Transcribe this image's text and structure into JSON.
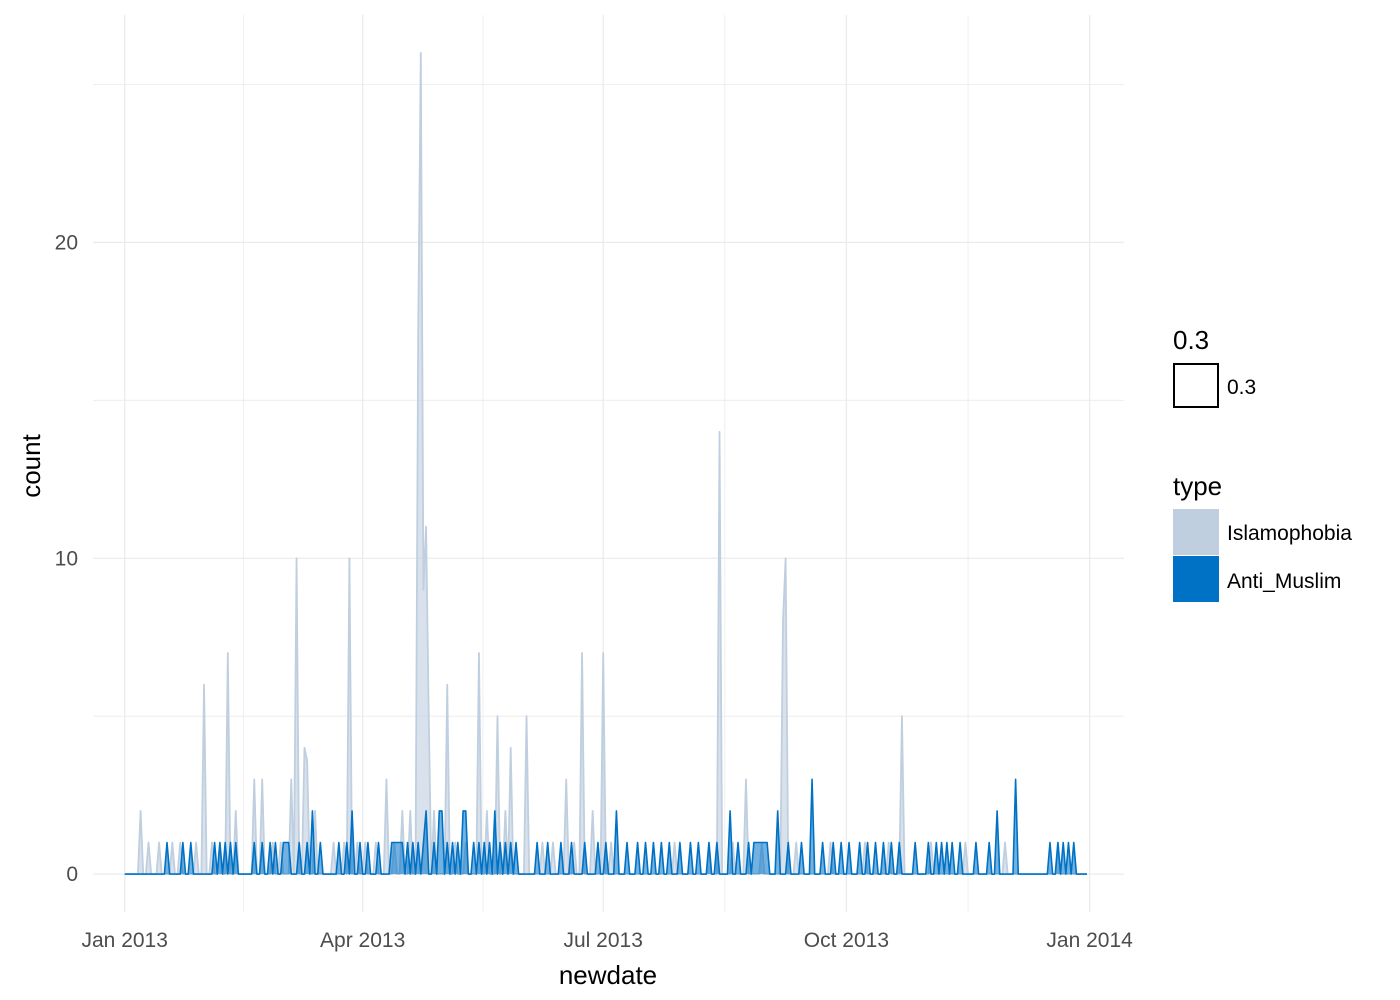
{
  "chart_data": {
    "type": "area",
    "xlabel": "newdate",
    "ylabel": "count",
    "x_ticks": [
      "Jan 2013",
      "Apr 2013",
      "Jul 2013",
      "Oct 2013",
      "Jan 2014"
    ],
    "x_tick_dates": [
      "2013-01-01",
      "2013-04-01",
      "2013-07-01",
      "2013-10-01",
      "2014-01-01"
    ],
    "xlim": [
      "2012-12-20",
      "2014-01-14"
    ],
    "y_ticks": [
      0,
      10,
      20
    ],
    "ylim": [
      -1.2,
      27.2
    ],
    "grid": true,
    "legend_position": "right",
    "alpha_legend": {
      "title": "0.3",
      "label": "0.3"
    },
    "legend": {
      "title": "type"
    },
    "series": [
      {
        "name": "Islamophobia",
        "color": "#bfcfdf",
        "points": [
          [
            "2013-01-07",
            2
          ],
          [
            "2013-01-10",
            1
          ],
          [
            "2013-01-14",
            1
          ],
          [
            "2013-01-19",
            1
          ],
          [
            "2013-01-22",
            1
          ],
          [
            "2013-01-28",
            1
          ],
          [
            "2013-01-31",
            6
          ],
          [
            "2013-02-03",
            1
          ],
          [
            "2013-02-06",
            1
          ],
          [
            "2013-02-09",
            7
          ],
          [
            "2013-02-12",
            2
          ],
          [
            "2013-02-19",
            3
          ],
          [
            "2013-02-22",
            3
          ],
          [
            "2013-02-26",
            1
          ],
          [
            "2013-03-01",
            1
          ],
          [
            "2013-03-05",
            3
          ],
          [
            "2013-03-07",
            10
          ],
          [
            "2013-03-10",
            4
          ],
          [
            "2013-03-11",
            3.6
          ],
          [
            "2013-03-14",
            2
          ],
          [
            "2013-03-21",
            1
          ],
          [
            "2013-03-25",
            1
          ],
          [
            "2013-03-27",
            10
          ],
          [
            "2013-03-30",
            1
          ],
          [
            "2013-04-02",
            1
          ],
          [
            "2013-04-06",
            1
          ],
          [
            "2013-04-10",
            3
          ],
          [
            "2013-04-13",
            1
          ],
          [
            "2013-04-16",
            2
          ],
          [
            "2013-04-19",
            2
          ],
          [
            "2013-04-22",
            17
          ],
          [
            "2013-04-23",
            26
          ],
          [
            "2013-04-24",
            9
          ],
          [
            "2013-04-25",
            11
          ],
          [
            "2013-04-26",
            5
          ],
          [
            "2013-04-28",
            2
          ],
          [
            "2013-05-03",
            6
          ],
          [
            "2013-05-06",
            1
          ],
          [
            "2013-05-10",
            1
          ],
          [
            "2013-05-15",
            7
          ],
          [
            "2013-05-18",
            2
          ],
          [
            "2013-05-22",
            5
          ],
          [
            "2013-05-25",
            2
          ],
          [
            "2013-05-27",
            4
          ],
          [
            "2013-06-02",
            5
          ],
          [
            "2013-06-08",
            1
          ],
          [
            "2013-06-12",
            1
          ],
          [
            "2013-06-17",
            3
          ],
          [
            "2013-06-20",
            1
          ],
          [
            "2013-06-23",
            7
          ],
          [
            "2013-06-27",
            2
          ],
          [
            "2013-07-01",
            7
          ],
          [
            "2013-07-04",
            1
          ],
          [
            "2013-07-28",
            1
          ],
          [
            "2013-08-10",
            1
          ],
          [
            "2013-08-14",
            14
          ],
          [
            "2013-08-19",
            1
          ],
          [
            "2013-08-24",
            3
          ],
          [
            "2013-08-30",
            1
          ],
          [
            "2013-09-07",
            8
          ],
          [
            "2013-09-08",
            10
          ],
          [
            "2013-09-12",
            1
          ],
          [
            "2013-09-25",
            1
          ],
          [
            "2013-10-08",
            1
          ],
          [
            "2013-10-17",
            1
          ],
          [
            "2013-10-22",
            5
          ],
          [
            "2013-11-02",
            1
          ],
          [
            "2013-11-15",
            1
          ],
          [
            "2013-11-30",
            1
          ],
          [
            "2013-12-20",
            1
          ]
        ]
      },
      {
        "name": "Anti_Muslim",
        "color": "#0072c6",
        "points": [
          [
            "2013-01-17",
            1
          ],
          [
            "2013-01-23",
            1
          ],
          [
            "2013-01-26",
            1
          ],
          [
            "2013-02-04",
            1
          ],
          [
            "2013-02-06",
            1
          ],
          [
            "2013-02-08",
            1
          ],
          [
            "2013-02-10",
            1
          ],
          [
            "2013-02-12",
            1
          ],
          [
            "2013-02-19",
            1
          ],
          [
            "2013-02-22",
            1
          ],
          [
            "2013-02-25",
            1
          ],
          [
            "2013-02-27",
            1
          ],
          [
            "2013-03-02",
            1
          ],
          [
            "2013-03-03",
            1
          ],
          [
            "2013-03-04",
            1
          ],
          [
            "2013-03-08",
            1
          ],
          [
            "2013-03-11",
            1
          ],
          [
            "2013-03-13",
            2
          ],
          [
            "2013-03-16",
            1
          ],
          [
            "2013-03-23",
            1
          ],
          [
            "2013-03-26",
            1
          ],
          [
            "2013-03-28",
            2
          ],
          [
            "2013-03-31",
            1
          ],
          [
            "2013-04-03",
            1
          ],
          [
            "2013-04-07",
            1
          ],
          [
            "2013-04-12",
            1
          ],
          [
            "2013-04-13",
            1
          ],
          [
            "2013-04-14",
            1
          ],
          [
            "2013-04-15",
            1
          ],
          [
            "2013-04-16",
            1
          ],
          [
            "2013-04-18",
            1
          ],
          [
            "2013-04-20",
            1
          ],
          [
            "2013-04-22",
            1
          ],
          [
            "2013-04-24",
            1
          ],
          [
            "2013-04-25",
            2
          ],
          [
            "2013-04-28",
            1
          ],
          [
            "2013-04-30",
            2
          ],
          [
            "2013-05-01",
            2
          ],
          [
            "2013-05-03",
            1
          ],
          [
            "2013-05-05",
            1
          ],
          [
            "2013-05-07",
            1
          ],
          [
            "2013-05-09",
            2
          ],
          [
            "2013-05-10",
            2
          ],
          [
            "2013-05-13",
            1
          ],
          [
            "2013-05-15",
            1
          ],
          [
            "2013-05-17",
            1
          ],
          [
            "2013-05-19",
            1
          ],
          [
            "2013-05-21",
            2
          ],
          [
            "2013-05-23",
            1
          ],
          [
            "2013-05-25",
            1
          ],
          [
            "2013-05-27",
            1
          ],
          [
            "2013-05-29",
            1
          ],
          [
            "2013-06-06",
            1
          ],
          [
            "2013-06-10",
            1
          ],
          [
            "2013-06-15",
            1
          ],
          [
            "2013-06-19",
            1
          ],
          [
            "2013-06-24",
            1
          ],
          [
            "2013-06-29",
            1
          ],
          [
            "2013-07-02",
            1
          ],
          [
            "2013-07-06",
            2
          ],
          [
            "2013-07-10",
            1
          ],
          [
            "2013-07-14",
            1
          ],
          [
            "2013-07-17",
            1
          ],
          [
            "2013-07-20",
            1
          ],
          [
            "2013-07-23",
            1
          ],
          [
            "2013-07-26",
            1
          ],
          [
            "2013-07-30",
            1
          ],
          [
            "2013-08-03",
            1
          ],
          [
            "2013-08-06",
            1
          ],
          [
            "2013-08-10",
            1
          ],
          [
            "2013-08-13",
            1
          ],
          [
            "2013-08-18",
            2
          ],
          [
            "2013-08-21",
            1
          ],
          [
            "2013-08-25",
            1
          ],
          [
            "2013-08-27",
            1
          ],
          [
            "2013-08-28",
            1
          ],
          [
            "2013-08-29",
            1
          ],
          [
            "2013-08-30",
            1
          ],
          [
            "2013-08-31",
            1
          ],
          [
            "2013-09-01",
            1
          ],
          [
            "2013-09-05",
            2
          ],
          [
            "2013-09-09",
            1
          ],
          [
            "2013-09-14",
            1
          ],
          [
            "2013-09-18",
            3
          ],
          [
            "2013-09-22",
            1
          ],
          [
            "2013-09-26",
            1
          ],
          [
            "2013-09-29",
            1
          ],
          [
            "2013-10-02",
            1
          ],
          [
            "2013-10-06",
            1
          ],
          [
            "2013-10-09",
            1
          ],
          [
            "2013-10-12",
            1
          ],
          [
            "2013-10-15",
            1
          ],
          [
            "2013-10-18",
            1
          ],
          [
            "2013-10-21",
            1
          ],
          [
            "2013-10-27",
            1
          ],
          [
            "2013-11-01",
            1
          ],
          [
            "2013-11-04",
            1
          ],
          [
            "2013-11-06",
            1
          ],
          [
            "2013-11-08",
            1
          ],
          [
            "2013-11-10",
            1
          ],
          [
            "2013-11-13",
            1
          ],
          [
            "2013-11-19",
            1
          ],
          [
            "2013-11-24",
            1
          ],
          [
            "2013-11-27",
            2
          ],
          [
            "2013-12-04",
            3
          ],
          [
            "2013-12-17",
            1
          ],
          [
            "2013-12-20",
            1
          ],
          [
            "2013-12-22",
            1
          ],
          [
            "2013-12-24",
            1
          ],
          [
            "2013-12-26",
            1
          ]
        ]
      }
    ]
  }
}
